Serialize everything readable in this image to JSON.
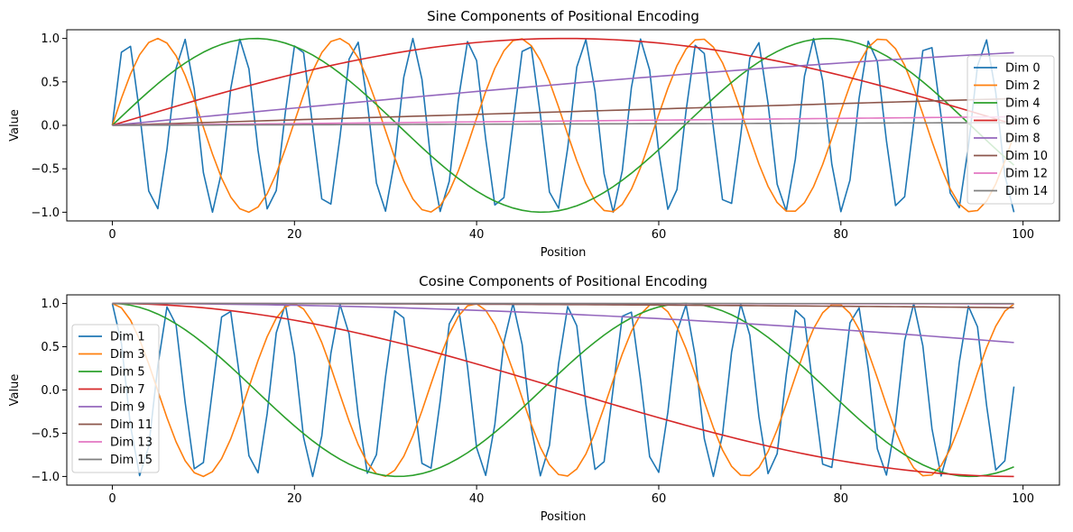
{
  "chart_data": [
    {
      "type": "line",
      "title": "Sine Components of Positional Encoding",
      "xlabel": "Position",
      "ylabel": "Value",
      "xlim": [
        -5,
        104
      ],
      "ylim": [
        -1.1,
        1.1
      ],
      "xticks": [
        0,
        20,
        40,
        60,
        80,
        100
      ],
      "xtick_labels": [
        "0",
        "20",
        "40",
        "60",
        "80",
        "100"
      ],
      "yticks": [
        1.0,
        0.5,
        0.0,
        -0.5,
        -1.0
      ],
      "ytick_labels": [
        "1.0",
        "0.5",
        "0.0",
        "−0.5",
        "−1.0"
      ],
      "grid": false,
      "legend": "center-right",
      "function": "sin",
      "d_model": 16,
      "x": {
        "start": 0,
        "end": 99,
        "step": 1
      },
      "series": [
        {
          "name": "Dim 0",
          "dim": 0,
          "color": "#1f77b4"
        },
        {
          "name": "Dim 2",
          "dim": 2,
          "color": "#ff7f0e"
        },
        {
          "name": "Dim 4",
          "dim": 4,
          "color": "#2ca02c"
        },
        {
          "name": "Dim 6",
          "dim": 6,
          "color": "#d62728"
        },
        {
          "name": "Dim 8",
          "dim": 8,
          "color": "#9467bd"
        },
        {
          "name": "Dim 10",
          "dim": 10,
          "color": "#8c564b"
        },
        {
          "name": "Dim 12",
          "dim": 12,
          "color": "#e377c2"
        },
        {
          "name": "Dim 14",
          "dim": 14,
          "color": "#7f7f7f"
        }
      ]
    },
    {
      "type": "line",
      "title": "Cosine Components of Positional Encoding",
      "xlabel": "Position",
      "ylabel": "Value",
      "xlim": [
        -5,
        104
      ],
      "ylim": [
        -1.1,
        1.1
      ],
      "xticks": [
        0,
        20,
        40,
        60,
        80,
        100
      ],
      "xtick_labels": [
        "0",
        "20",
        "40",
        "60",
        "80",
        "100"
      ],
      "yticks": [
        1.0,
        0.5,
        0.0,
        -0.5,
        -1.0
      ],
      "ytick_labels": [
        "1.0",
        "0.5",
        "0.0",
        "−0.5",
        "−1.0"
      ],
      "grid": false,
      "legend": "lower-left",
      "function": "cos",
      "d_model": 16,
      "x": {
        "start": 0,
        "end": 99,
        "step": 1
      },
      "series": [
        {
          "name": "Dim 1",
          "dim": 0,
          "color": "#1f77b4"
        },
        {
          "name": "Dim 3",
          "dim": 2,
          "color": "#ff7f0e"
        },
        {
          "name": "Dim 5",
          "dim": 4,
          "color": "#2ca02c"
        },
        {
          "name": "Dim 7",
          "dim": 6,
          "color": "#d62728"
        },
        {
          "name": "Dim 9",
          "dim": 8,
          "color": "#9467bd"
        },
        {
          "name": "Dim 11",
          "dim": 10,
          "color": "#8c564b"
        },
        {
          "name": "Dim 13",
          "dim": 12,
          "color": "#e377c2"
        },
        {
          "name": "Dim 15",
          "dim": 14,
          "color": "#7f7f7f"
        }
      ]
    }
  ]
}
